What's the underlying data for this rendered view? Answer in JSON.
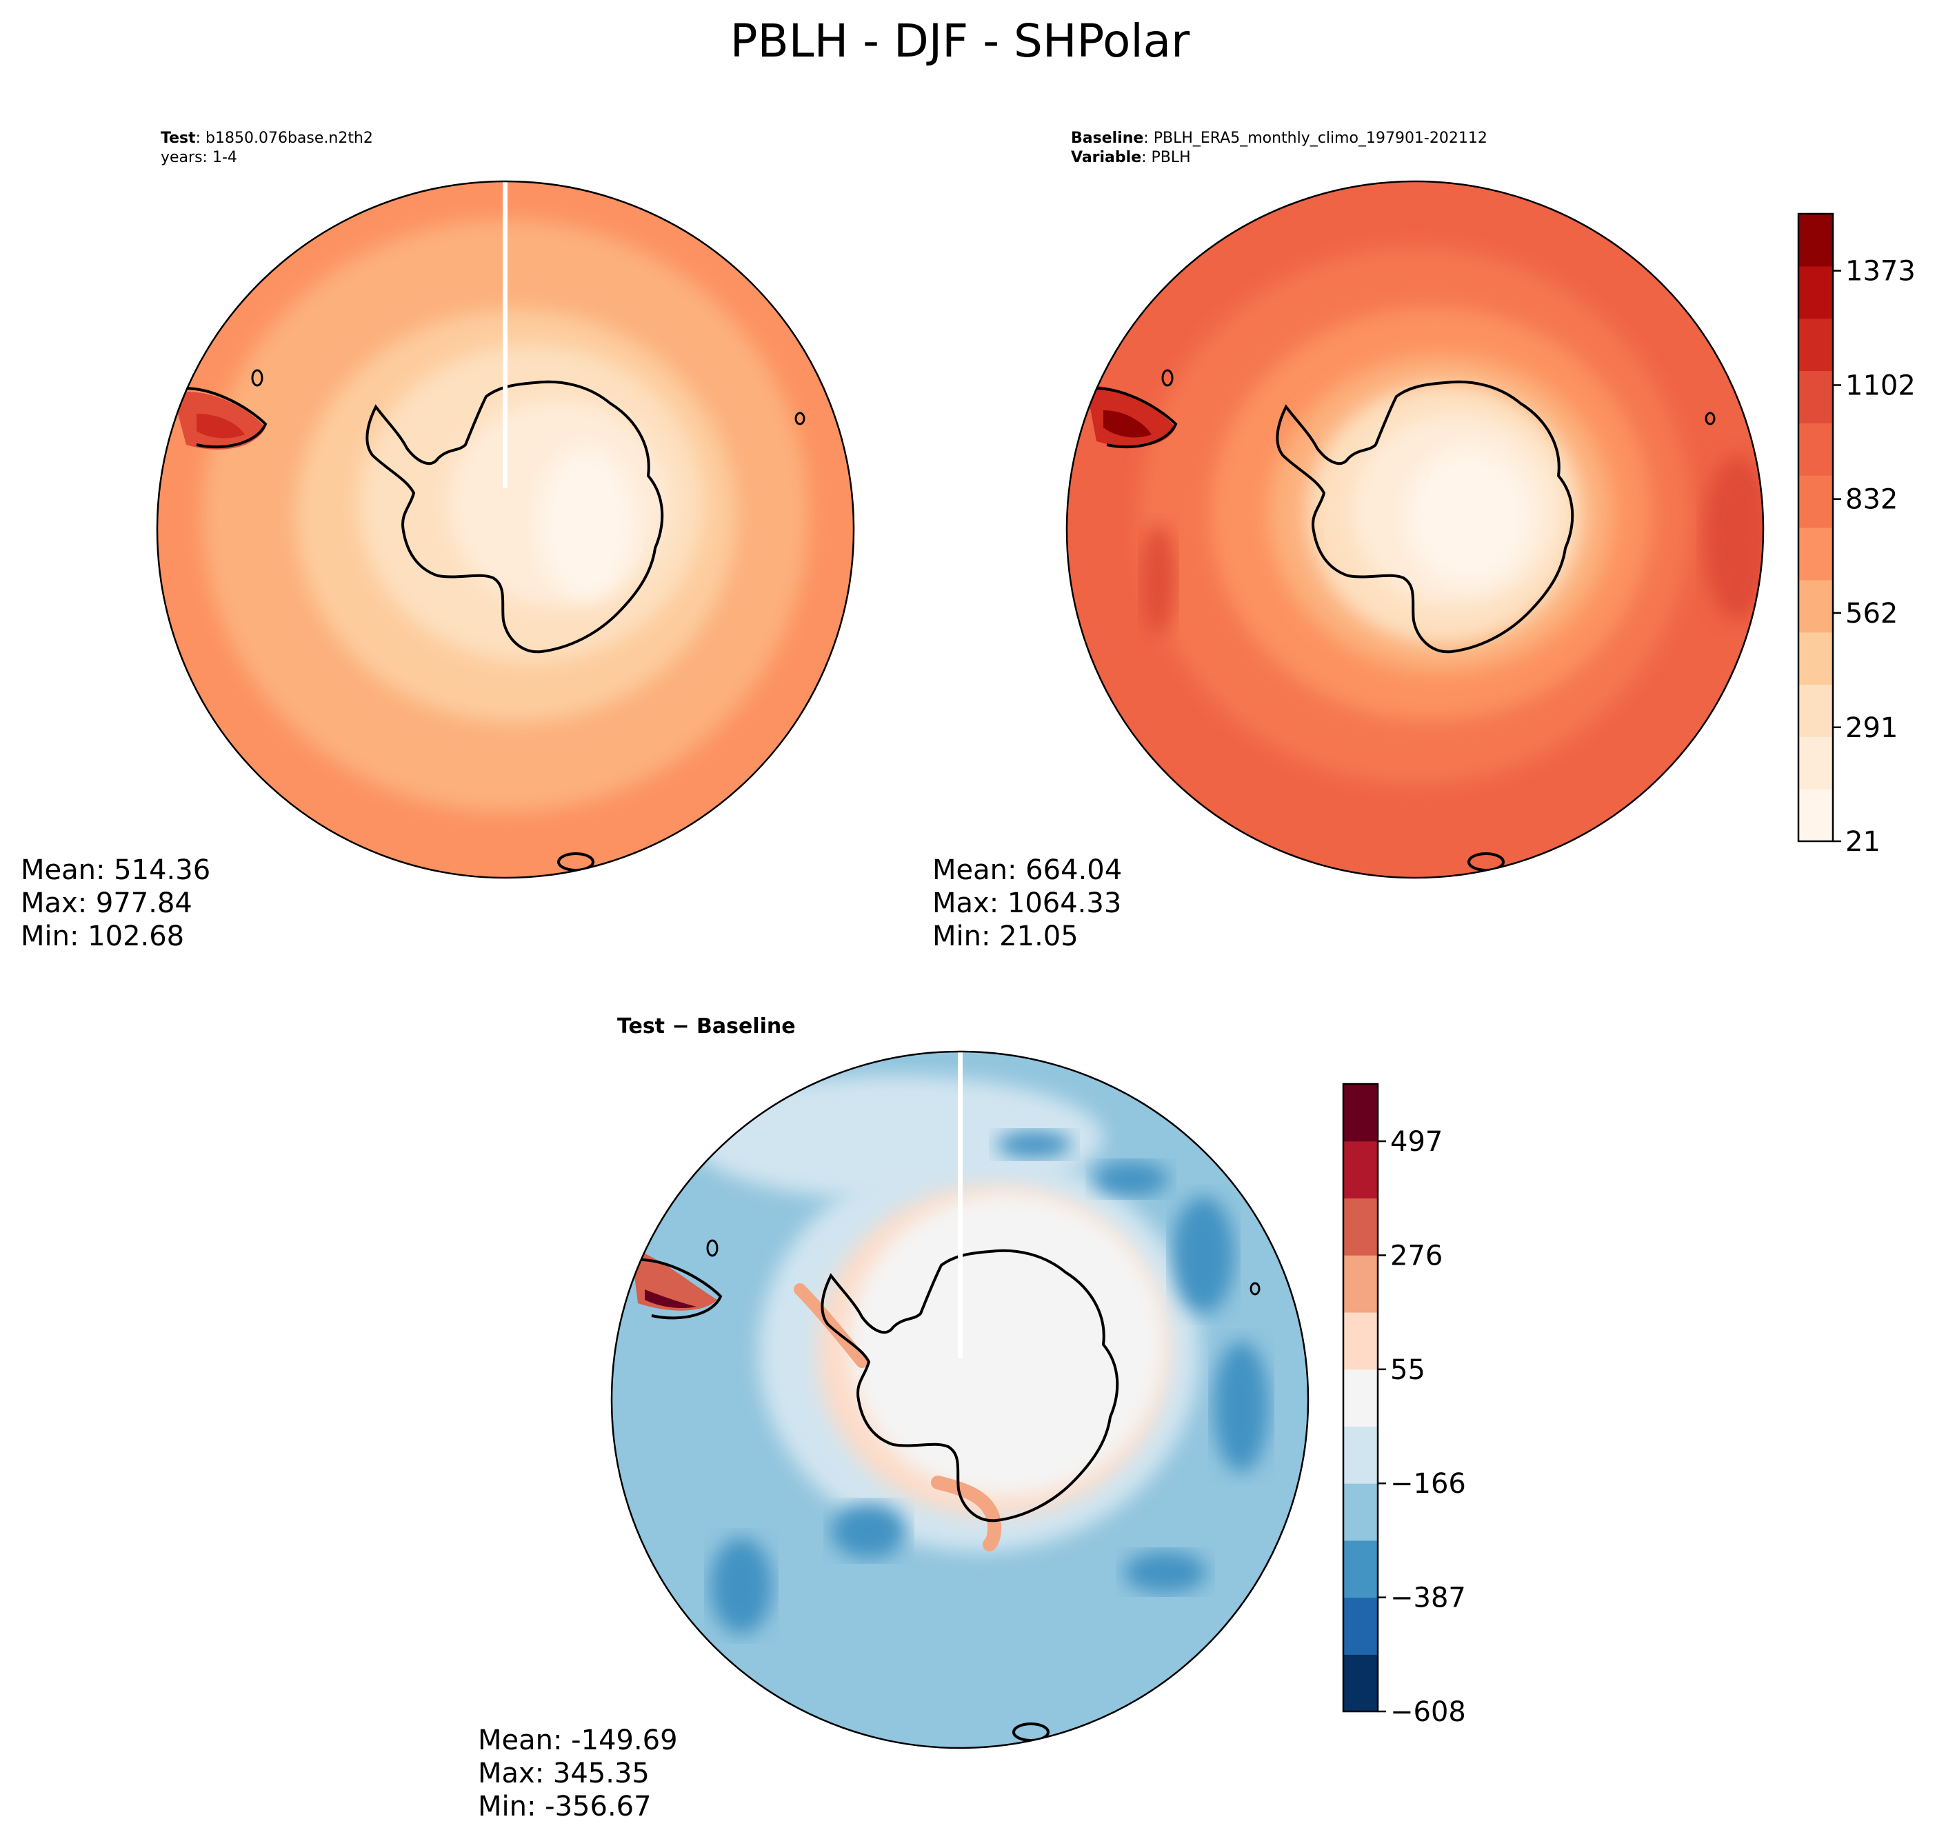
{
  "figure": {
    "title": "PBLH - DJF - SHPolar"
  },
  "colors": {
    "oranges": [
      "#fff5eb",
      "#feecd9",
      "#fde0c0",
      "#fdcc9d",
      "#fcb07c",
      "#fc9261",
      "#f57750",
      "#ef6445",
      "#e04c38",
      "#cf2a20",
      "#b60f0e",
      "#8e0103"
    ],
    "rdbu": [
      "#053061",
      "#2066ac",
      "#4393c3",
      "#92c5de",
      "#d1e5f0",
      "#f4f4f4",
      "#fddbc7",
      "#f4a582",
      "#d6604d",
      "#b2182b",
      "#67001f"
    ],
    "land_outline": "#000000"
  },
  "chart_data": [
    {
      "type": "heatmap",
      "panel": "test",
      "projection": "south polar stereographic",
      "label_bold": "Test",
      "label_text": "b1850.076base.n2th2",
      "line2": "years: 1-4",
      "stats": {
        "mean": "Mean: 514.36",
        "max": "Max: 977.84",
        "min": "Min: 102.68"
      },
      "field_levels": {
        "ocean_outer": 832,
        "ocean_mid": 562,
        "coast": 291,
        "interior": 100
      }
    },
    {
      "type": "heatmap",
      "panel": "baseline",
      "projection": "south polar stereographic",
      "label_bold": "Baseline",
      "label_text": "PBLH_ERA5_monthly_climo_197901-202112",
      "line2_bold": "Variable",
      "line2_text": "PBLH",
      "stats": {
        "mean": "Mean: 664.04",
        "max": "Max: 1064.33",
        "min": "Min: 21.05"
      },
      "field_levels": {
        "ocean_outer": 950,
        "ocean_mid": 780,
        "coast": 400,
        "interior": 60
      },
      "colorbar": {
        "min": 21,
        "max": 1508,
        "levels": 12,
        "tick_values": [
          21,
          291,
          562,
          832,
          1102,
          1373
        ],
        "tick_labels": [
          "21",
          "291",
          "562",
          "832",
          "1102",
          "1373"
        ]
      }
    },
    {
      "type": "heatmap",
      "panel": "difference",
      "projection": "south polar stereographic",
      "title": "Test − Baseline",
      "stats": {
        "mean": "Mean: -149.69",
        "max": "Max: 345.35",
        "min": "Min: -356.67"
      },
      "field_levels": {
        "ocean": -200,
        "ring": -120,
        "coast": 80,
        "interior": 0
      },
      "colorbar": {
        "min": -608,
        "max": 608,
        "levels": 11,
        "tick_values": [
          -608,
          -387,
          -166,
          55,
          276,
          497
        ],
        "tick_labels": [
          "−608",
          "−387",
          "−166",
          "55",
          "276",
          "497"
        ]
      }
    }
  ]
}
